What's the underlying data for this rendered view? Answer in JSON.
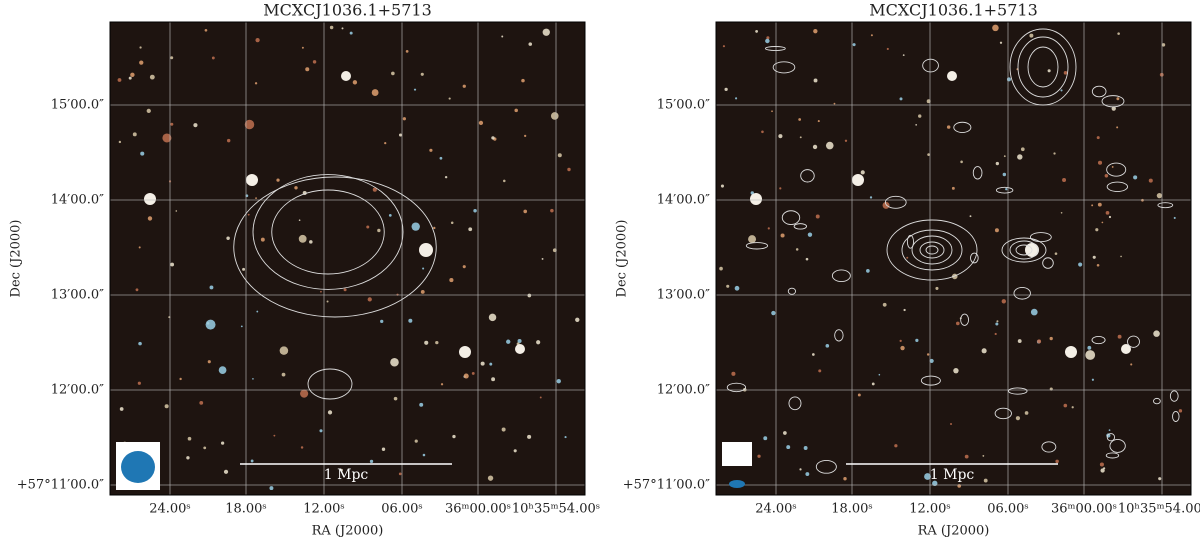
{
  "panels": [
    {
      "title": "MCXCJ1036.1+5713",
      "xlabel": "RA (J2000)",
      "ylabel": "Dec (J2000)",
      "xticks": [
        "24.00ˢ",
        "18.00ˢ",
        "12.00ˢ",
        "06.00ˢ",
        "36ᵐ00.00ˢ",
        "10ʰ35ᵐ54.00ˢ"
      ],
      "yticks": [
        "15′00.0″",
        "14′00.0″",
        "13′00.0″",
        "12′00.0″",
        "+57°11′00.0″"
      ],
      "scalebar": "1 Mpc"
    },
    {
      "title": "MCXCJ1036.1+5713",
      "xlabel": "RA (J2000)",
      "ylabel": "Dec (J2000)",
      "xticks": [
        "24.00ˢ",
        "18.00ˢ",
        "12.00ˢ",
        "06.00ˢ",
        "36ᵐ00.00ˢ",
        "10ʰ35ᵐ54.00ˢ"
      ],
      "yticks": [
        "15′00.0″",
        "14′00.0″",
        "13′00.0″",
        "12′00.0″",
        "+57°11′00.0″"
      ],
      "scalebar": "1 Mpc"
    }
  ]
}
